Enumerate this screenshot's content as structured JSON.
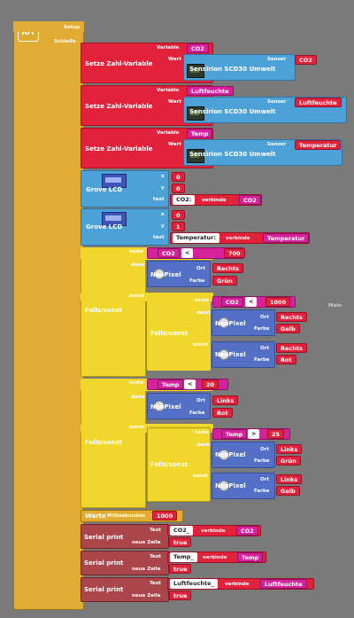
{
  "logo": "IoT",
  "setup_label": "Setup",
  "loop_label": "Schleife",
  "main_label": "Main",
  "set_var_label": "Setze Zahl-Variable",
  "variable_label": "Variable",
  "value_label": "Wert",
  "sensor_label": "Sensor",
  "sensor_name": "Sensirion SCD30 Umwelt",
  "var_blocks": [
    {
      "var": "CO2",
      "sensor": "CO2"
    },
    {
      "var": "Luftfeuchte",
      "sensor": "Luftfeuchte"
    },
    {
      "var": "Temp",
      "sensor": "Temperatur"
    }
  ],
  "lcd_label": "Grove LCD",
  "x_label": "x",
  "y_label": "y",
  "text_label": "text",
  "join_label": "verbinde",
  "lcd_blocks": [
    {
      "x": "0",
      "y": "0",
      "text": "CO2:",
      "var": "CO2"
    },
    {
      "x": "0",
      "y": "1",
      "text": "Temperatur:",
      "var": "Temperatur"
    }
  ],
  "if_label": "Falls/sonst",
  "test_label": "teste",
  "then_label": "dann",
  "else_label": "sonst",
  "neopixel_label": "NeoPixel",
  "place_label": "Ort",
  "color_label": "Farbe",
  "lt": "<",
  "gt": ">",
  "if1": {
    "var": "CO2",
    "val": "700",
    "then": {
      "place": "Rechts",
      "color": "Grün"
    },
    "inner": {
      "var": "CO2",
      "val": "1000",
      "then": {
        "place": "Rechts",
        "color": "Gelb"
      },
      "else": {
        "place": "Rechts",
        "color": "Rot"
      }
    }
  },
  "if2": {
    "var": "Temp",
    "val": "20",
    "then": {
      "place": "Links",
      "color": "Rot"
    },
    "inner": {
      "var": "Temp",
      "val": "25",
      "then": {
        "place": "Links",
        "color": "Grün"
      },
      "else": {
        "place": "Links",
        "color": "Gelb"
      }
    }
  },
  "wait_label": "Warte",
  "ms_label": "Millisekunden",
  "wait_value": "1000",
  "serial_label": "Serial print",
  "serial_text_label": "Text",
  "newline_label": "neue Zeile",
  "serial_blocks": [
    {
      "text": "CO2_",
      "var": "CO2",
      "newline": "true"
    },
    {
      "text": "Temp_",
      "var": "Temp",
      "newline": "true"
    },
    {
      "text": "Luftfeuchte_",
      "var": "Luftfeuchte",
      "newline": "true"
    }
  ]
}
